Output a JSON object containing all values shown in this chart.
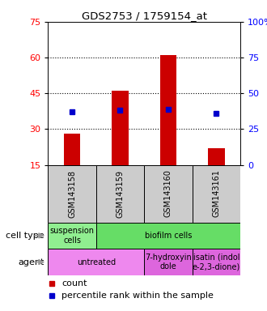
{
  "title": "GDS2753 / 1759154_at",
  "samples": [
    "GSM143158",
    "GSM143159",
    "GSM143160",
    "GSM143161"
  ],
  "bar_values": [
    28,
    46,
    61,
    22
  ],
  "percentile_values": [
    37,
    38,
    39,
    36
  ],
  "bar_color": "#cc0000",
  "dot_color": "#0000cc",
  "ylim_left": [
    15,
    75
  ],
  "ylim_right": [
    0,
    100
  ],
  "yticks_left": [
    15,
    30,
    45,
    60,
    75
  ],
  "yticks_right": [
    0,
    25,
    50,
    75,
    100
  ],
  "ytick_labels_right": [
    "0",
    "25",
    "50",
    "75",
    "100%"
  ],
  "bar_bottom": 15,
  "cell_type_label": "cell type",
  "agent_label": "agent",
  "legend_count": "count",
  "legend_percentile": "percentile rank within the sample",
  "background_color": "#ffffff",
  "ct_data": [
    [
      0,
      1,
      "suspension\ncells",
      "#90ee90"
    ],
    [
      1,
      4,
      "biofilm cells",
      "#66dd66"
    ]
  ],
  "ag_data": [
    [
      0,
      2,
      "untreated",
      "#ee88ee"
    ],
    [
      2,
      3,
      "7-hydroxyin\ndole",
      "#dd66dd"
    ],
    [
      3,
      4,
      "isatin (indol\ne-2,3-dione)",
      "#dd66dd"
    ]
  ]
}
